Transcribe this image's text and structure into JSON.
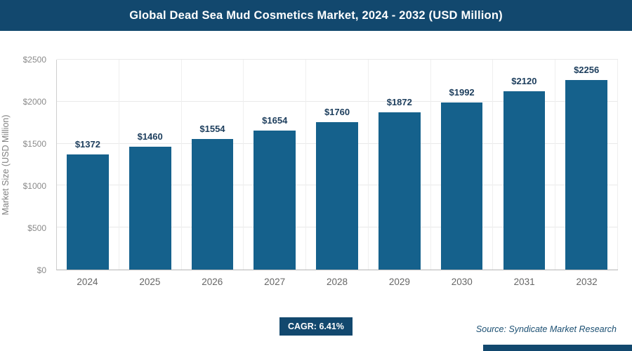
{
  "header": {
    "title": "Global Dead Sea Mud Cosmetics Market, 2024 - 2032 (USD Million)"
  },
  "chart_data": {
    "type": "bar",
    "categories": [
      "2024",
      "2025",
      "2026",
      "2027",
      "2028",
      "2029",
      "2030",
      "2031",
      "2032"
    ],
    "values": [
      1372,
      1460,
      1554,
      1654,
      1760,
      1872,
      1992,
      2120,
      2256
    ],
    "value_labels": [
      "$1372",
      "$1460",
      "$1554",
      "$1654",
      "$1760",
      "$1872",
      "$1992",
      "$2120",
      "$2256"
    ],
    "title": "Global Dead Sea Mud Cosmetics Market, 2024 - 2032 (USD Million)",
    "xlabel": "",
    "ylabel": "Market Size (USD Million)",
    "ylim": [
      0,
      2500
    ],
    "yticks": [
      0,
      500,
      1000,
      1500,
      2000,
      2500
    ],
    "ytick_labels": [
      "$0",
      "$500",
      "$1000",
      "$1500",
      "$2000",
      "$2500"
    ],
    "bar_color": "#15618c",
    "grid": true,
    "legend": "none"
  },
  "footer": {
    "cagr_label": "CAGR: 6.41%",
    "source": "Source: Syndicate Market Research"
  }
}
